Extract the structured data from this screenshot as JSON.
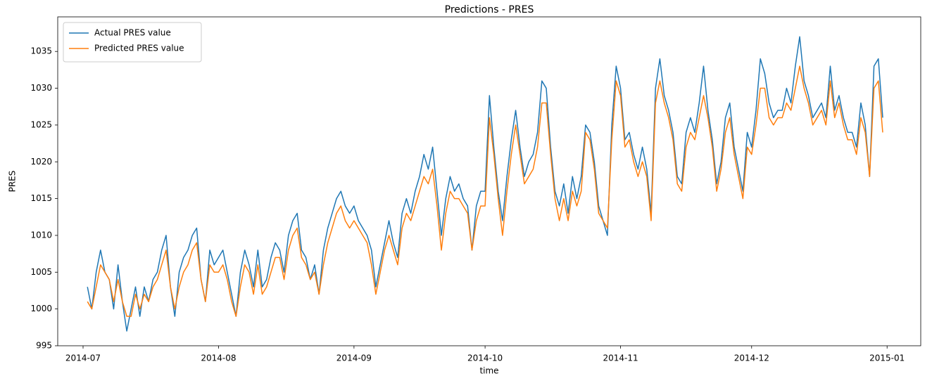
{
  "chart_data": {
    "type": "line",
    "title": "Predictions - PRES",
    "x_label": "time",
    "y_label": "PRES",
    "x": [
      16253,
      16254,
      16255,
      16256,
      16257,
      16258,
      16259,
      16260,
      16261,
      16262,
      16263,
      16264,
      16265,
      16266,
      16267,
      16268,
      16269,
      16270,
      16271,
      16272,
      16273,
      16274,
      16275,
      16276,
      16277,
      16278,
      16279,
      16280,
      16281,
      16282,
      16283,
      16284,
      16285,
      16286,
      16287,
      16288,
      16289,
      16290,
      16291,
      16292,
      16293,
      16294,
      16295,
      16296,
      16297,
      16298,
      16299,
      16300,
      16301,
      16302,
      16303,
      16304,
      16305,
      16306,
      16307,
      16308,
      16309,
      16310,
      16311,
      16312,
      16313,
      16314,
      16315,
      16316,
      16317,
      16318,
      16319,
      16320,
      16321,
      16322,
      16323,
      16324,
      16325,
      16326,
      16327,
      16328,
      16329,
      16330,
      16331,
      16332,
      16333,
      16334,
      16335,
      16336,
      16337,
      16338,
      16339,
      16340,
      16341,
      16342,
      16343,
      16344,
      16345,
      16346,
      16347,
      16348,
      16349,
      16350,
      16351,
      16352,
      16353,
      16354,
      16355,
      16356,
      16357,
      16358,
      16359,
      16360,
      16361,
      16362,
      16363,
      16364,
      16365,
      16366,
      16367,
      16368,
      16369,
      16370,
      16371,
      16372,
      16373,
      16374,
      16375,
      16376,
      16377,
      16378,
      16379,
      16380,
      16381,
      16382,
      16383,
      16384,
      16385,
      16386,
      16387,
      16388,
      16389,
      16390,
      16391,
      16392,
      16393,
      16394,
      16395,
      16396,
      16397,
      16398,
      16399,
      16400,
      16401,
      16402,
      16403,
      16404,
      16405,
      16406,
      16407,
      16408,
      16409,
      16410,
      16411,
      16412,
      16413,
      16414,
      16415,
      16416,
      16417,
      16418,
      16419,
      16420,
      16421,
      16422,
      16423,
      16424,
      16425,
      16426,
      16427,
      16428,
      16429,
      16430,
      16431,
      16432,
      16433,
      16434,
      16435
    ],
    "series": [
      {
        "name": "Actual PRES value",
        "color": "#1f77b4",
        "values": [
          1003,
          1000,
          1005,
          1008,
          1005,
          1004,
          1000,
          1006,
          1001,
          997,
          1000,
          1003,
          999,
          1003,
          1001,
          1004,
          1005,
          1008,
          1010,
          1003,
          999,
          1005,
          1007,
          1008,
          1010,
          1011,
          1004,
          1001,
          1008,
          1006,
          1007,
          1008,
          1005,
          1002,
          999,
          1005,
          1008,
          1006,
          1003,
          1008,
          1003,
          1004,
          1007,
          1009,
          1008,
          1005,
          1010,
          1012,
          1013,
          1008,
          1007,
          1004,
          1006,
          1002,
          1008,
          1011,
          1013,
          1015,
          1016,
          1014,
          1013,
          1014,
          1012,
          1011,
          1010,
          1008,
          1003,
          1006,
          1009,
          1012,
          1009,
          1007,
          1013,
          1015,
          1013,
          1016,
          1018,
          1021,
          1019,
          1022,
          1016,
          1010,
          1015,
          1018,
          1016,
          1017,
          1015,
          1014,
          1008,
          1014,
          1016,
          1016,
          1029,
          1022,
          1016,
          1012,
          1018,
          1023,
          1027,
          1022,
          1018,
          1020,
          1021,
          1024,
          1031,
          1030,
          1022,
          1016,
          1014,
          1017,
          1013,
          1018,
          1015,
          1018,
          1025,
          1024,
          1020,
          1014,
          1012,
          1010,
          1025,
          1033,
          1030,
          1023,
          1024,
          1021,
          1019,
          1022,
          1019,
          1013,
          1030,
          1034,
          1029,
          1027,
          1024,
          1018,
          1017,
          1024,
          1026,
          1024,
          1028,
          1033,
          1027,
          1023,
          1017,
          1020,
          1026,
          1028,
          1022,
          1019,
          1016,
          1024,
          1022,
          1027,
          1034,
          1032,
          1028,
          1026,
          1027,
          1027,
          1030,
          1028,
          1033,
          1037,
          1031,
          1029,
          1026,
          1027,
          1028,
          1026,
          1033,
          1027,
          1029,
          1026,
          1024,
          1024,
          1022,
          1028,
          1025,
          1018,
          1033,
          1034,
          1026
        ]
      },
      {
        "name": "Predicted PRES value",
        "color": "#ff7f0e",
        "values": [
          1001,
          1000,
          1003,
          1006,
          1005,
          1004,
          1001,
          1004,
          1001,
          999,
          999,
          1002,
          1000,
          1002,
          1001,
          1003,
          1004,
          1006,
          1008,
          1003,
          1000,
          1003,
          1005,
          1006,
          1008,
          1009,
          1004,
          1001,
          1006,
          1005,
          1005,
          1006,
          1004,
          1001,
          999,
          1003,
          1006,
          1005,
          1002,
          1006,
          1002,
          1003,
          1005,
          1007,
          1007,
          1004,
          1008,
          1010,
          1011,
          1007,
          1006,
          1004,
          1005,
          1002,
          1006,
          1009,
          1011,
          1013,
          1014,
          1012,
          1011,
          1012,
          1011,
          1010,
          1009,
          1006,
          1002,
          1005,
          1008,
          1010,
          1008,
          1006,
          1011,
          1013,
          1012,
          1014,
          1016,
          1018,
          1017,
          1019,
          1014,
          1008,
          1013,
          1016,
          1015,
          1015,
          1014,
          1013,
          1008,
          1012,
          1014,
          1014,
          1026,
          1021,
          1015,
          1010,
          1016,
          1021,
          1025,
          1021,
          1017,
          1018,
          1019,
          1022,
          1028,
          1028,
          1021,
          1015,
          1012,
          1015,
          1012,
          1016,
          1014,
          1016,
          1024,
          1023,
          1019,
          1013,
          1012,
          1011,
          1023,
          1031,
          1029,
          1022,
          1023,
          1020,
          1018,
          1020,
          1018,
          1012,
          1028,
          1031,
          1028,
          1026,
          1023,
          1017,
          1016,
          1022,
          1024,
          1023,
          1026,
          1029,
          1026,
          1022,
          1016,
          1019,
          1024,
          1026,
          1021,
          1018,
          1015,
          1022,
          1021,
          1025,
          1030,
          1030,
          1026,
          1025,
          1026,
          1026,
          1028,
          1027,
          1030,
          1033,
          1030,
          1028,
          1025,
          1026,
          1027,
          1025,
          1031,
          1026,
          1028,
          1025,
          1023,
          1023,
          1021,
          1026,
          1024,
          1018,
          1030,
          1031,
          1024
        ]
      }
    ],
    "xlim": [
      16246.2,
      16443.7
    ],
    "ylim": [
      995,
      1039.7
    ],
    "xticks": [
      {
        "value": 16252,
        "label": "2014-07"
      },
      {
        "value": 16283,
        "label": "2014-08"
      },
      {
        "value": 16314,
        "label": "2014-09"
      },
      {
        "value": 16344,
        "label": "2014-10"
      },
      {
        "value": 16375,
        "label": "2014-11"
      },
      {
        "value": 16405,
        "label": "2014-12"
      },
      {
        "value": 16436,
        "label": "2015-01"
      }
    ],
    "yticks": [
      995,
      1000,
      1005,
      1010,
      1015,
      1020,
      1025,
      1030,
      1035
    ],
    "legend": "upper left",
    "grid": false
  }
}
